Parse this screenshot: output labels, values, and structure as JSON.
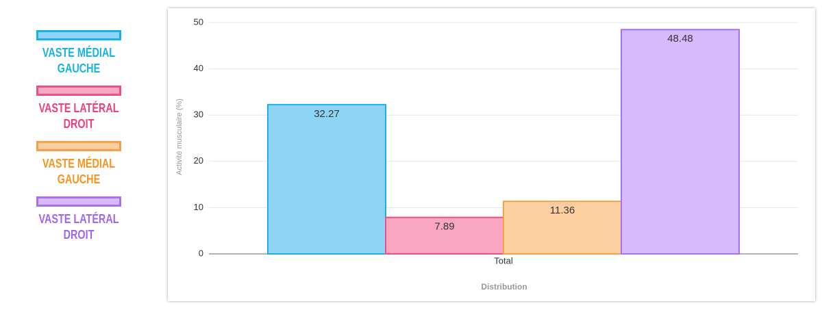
{
  "chart_data": {
    "type": "bar",
    "categories": [
      "Total"
    ],
    "series": [
      {
        "name": "VASTE MÉDIAL GAUCHE",
        "color": "#1ab0e8",
        "fill": "#8dd4f5",
        "text_color": "#1ab0e8",
        "values": [
          32.27
        ]
      },
      {
        "name": "VASTE LATÉRAL DROIT",
        "color": "#ee4f86",
        "fill": "#f8a6c1",
        "text_color": "#ee3f80",
        "values": [
          7.89
        ]
      },
      {
        "name": "VASTE MÉDIAL GAUCHE",
        "color": "#f7a04a",
        "fill": "#fdcfa0",
        "text_color": "#f7941d",
        "values": [
          11.36
        ]
      },
      {
        "name": "VASTE LATÉRAL DROIT",
        "color": "#a86ff0",
        "fill": "#d7bafb",
        "text_color": "#a066f0",
        "values": [
          48.48
        ]
      }
    ],
    "xlabel": "Distribution",
    "ylabel": "Activité musculaire (%)",
    "ylim": [
      0,
      50
    ],
    "yticks": [
      0,
      10,
      20,
      30,
      40,
      50
    ],
    "grid": true,
    "legend": "left"
  }
}
